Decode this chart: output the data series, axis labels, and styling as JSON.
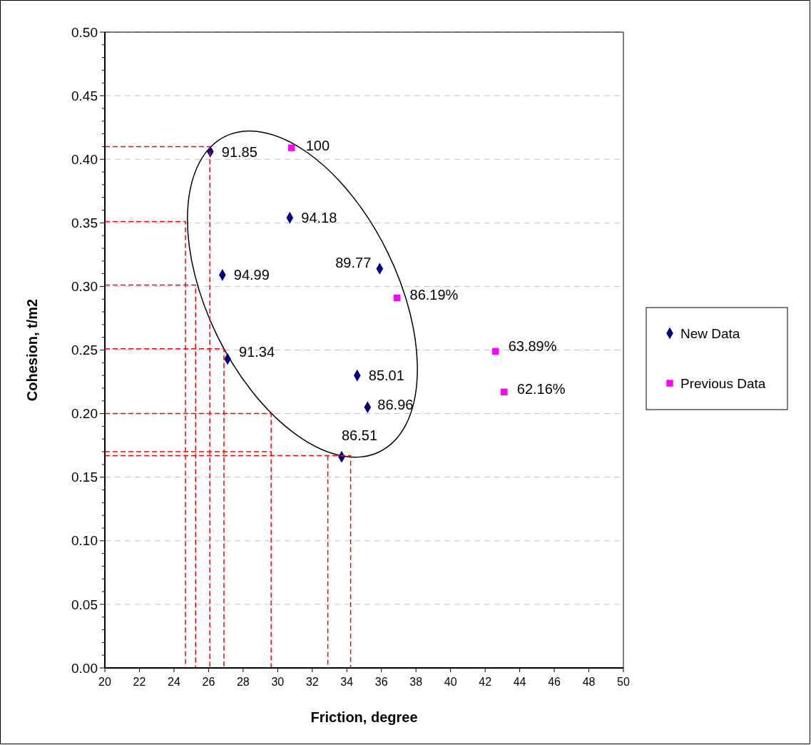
{
  "chart_data": {
    "type": "scatter",
    "xlabel": "Friction, degree",
    "ylabel": "Cohesion, t/m2",
    "xlim": [
      20,
      50
    ],
    "xticks": [
      20,
      22,
      24,
      26,
      28,
      30,
      32,
      34,
      36,
      38,
      40,
      42,
      44,
      46,
      48,
      50
    ],
    "ylim": [
      0,
      0.5
    ],
    "yticks": [
      {
        "value": 0,
        "label": "0.00"
      },
      {
        "value": 0.05,
        "label": "0.05"
      },
      {
        "value": 0.1,
        "label": "0.10"
      },
      {
        "value": 0.15,
        "label": "0.15"
      },
      {
        "value": 0.2,
        "label": "0.20"
      },
      {
        "value": 0.25,
        "label": "0.25"
      },
      {
        "value": 0.3,
        "label": "0.30"
      },
      {
        "value": 0.35,
        "label": "0.35"
      },
      {
        "value": 0.4,
        "label": "0.40"
      },
      {
        "value": 0.45,
        "label": "0.45"
      },
      {
        "value": 0.5,
        "label": "0.50"
      }
    ],
    "grid": "y",
    "legend": "right",
    "annotations": [
      {
        "text": "91.85",
        "x": 26.1,
        "y": 0.406
      },
      {
        "text": "94.18",
        "x": 30.7,
        "y": 0.354
      },
      {
        "text": "94.99",
        "x": 26.8,
        "y": 0.309
      },
      {
        "text": "89.77",
        "x": 35.9,
        "y": 0.314
      },
      {
        "text": "91.34",
        "x": 27.1,
        "y": 0.243
      },
      {
        "text": "85.01",
        "x": 34.6,
        "y": 0.23
      },
      {
        "text": "86.96",
        "x": 35.2,
        "y": 0.205
      },
      {
        "text": "86.51",
        "x": 33.7,
        "y": 0.166
      },
      {
        "text": "100",
        "x": 30.8,
        "y": 0.409
      },
      {
        "text": "86.19%",
        "x": 36.9,
        "y": 0.291
      },
      {
        "text": "63.89%",
        "x": 42.6,
        "y": 0.249
      },
      {
        "text": "62.16%",
        "x": 43.1,
        "y": 0.217
      }
    ],
    "series": [
      {
        "name": "New Data",
        "color": "#000080",
        "marker": "diamond",
        "x": [
          26.1,
          30.7,
          26.8,
          35.9,
          27.1,
          34.6,
          35.2,
          33.7
        ],
        "values": [
          0.406,
          0.354,
          0.309,
          0.314,
          0.243,
          0.23,
          0.205,
          0.166
        ]
      },
      {
        "name": "Previous Data",
        "color": "#ff00ff",
        "marker": "square",
        "x": [
          30.8,
          36.9,
          42.6,
          43.1
        ],
        "values": [
          0.409,
          0.291,
          0.249,
          0.217
        ]
      },
      {
        "type": "line",
        "color": "#ff0000",
        "marker": "none",
        "line_style": "dashed",
        "x": [
          20,
          26.07,
          26.07
        ],
        "values": [
          0.41,
          0.41,
          0
        ]
      },
      {
        "type": "line",
        "color": "#ff0000",
        "marker": "none",
        "line_style": "dashed",
        "x": [
          20,
          24.66,
          24.66
        ],
        "values": [
          0.351,
          0.351,
          0
        ]
      },
      {
        "type": "line",
        "color": "#ff0000",
        "marker": "none",
        "line_style": "dashed",
        "x": [
          20,
          25.25,
          25.25
        ],
        "values": [
          0.301,
          0.301,
          0
        ]
      },
      {
        "type": "line",
        "color": "#ff0000",
        "marker": "none",
        "line_style": "dashed",
        "x": [
          20,
          26.89,
          26.89
        ],
        "values": [
          0.251,
          0.251,
          0
        ]
      },
      {
        "type": "line",
        "color": "#ff0000",
        "marker": "none",
        "line_style": "dashed",
        "x": [
          20,
          29.62,
          29.62
        ],
        "values": [
          0.2,
          0.2,
          0
        ]
      },
      {
        "type": "line",
        "color": "#ff0000",
        "marker": "none",
        "line_style": "dashed",
        "x": [
          20,
          29.62
        ],
        "values": [
          0.17,
          0.17
        ]
      },
      {
        "type": "line",
        "color": "#ff0000",
        "marker": "none",
        "line_style": "dashed",
        "x": [
          20,
          34.22,
          34.22
        ],
        "values": [
          0.167,
          0.167,
          0
        ]
      },
      {
        "type": "line",
        "color": "#ff0000",
        "marker": "none",
        "line_style": "dashed",
        "x": [
          32.9,
          32.9
        ],
        "values": [
          0.167,
          0
        ]
      }
    ]
  }
}
